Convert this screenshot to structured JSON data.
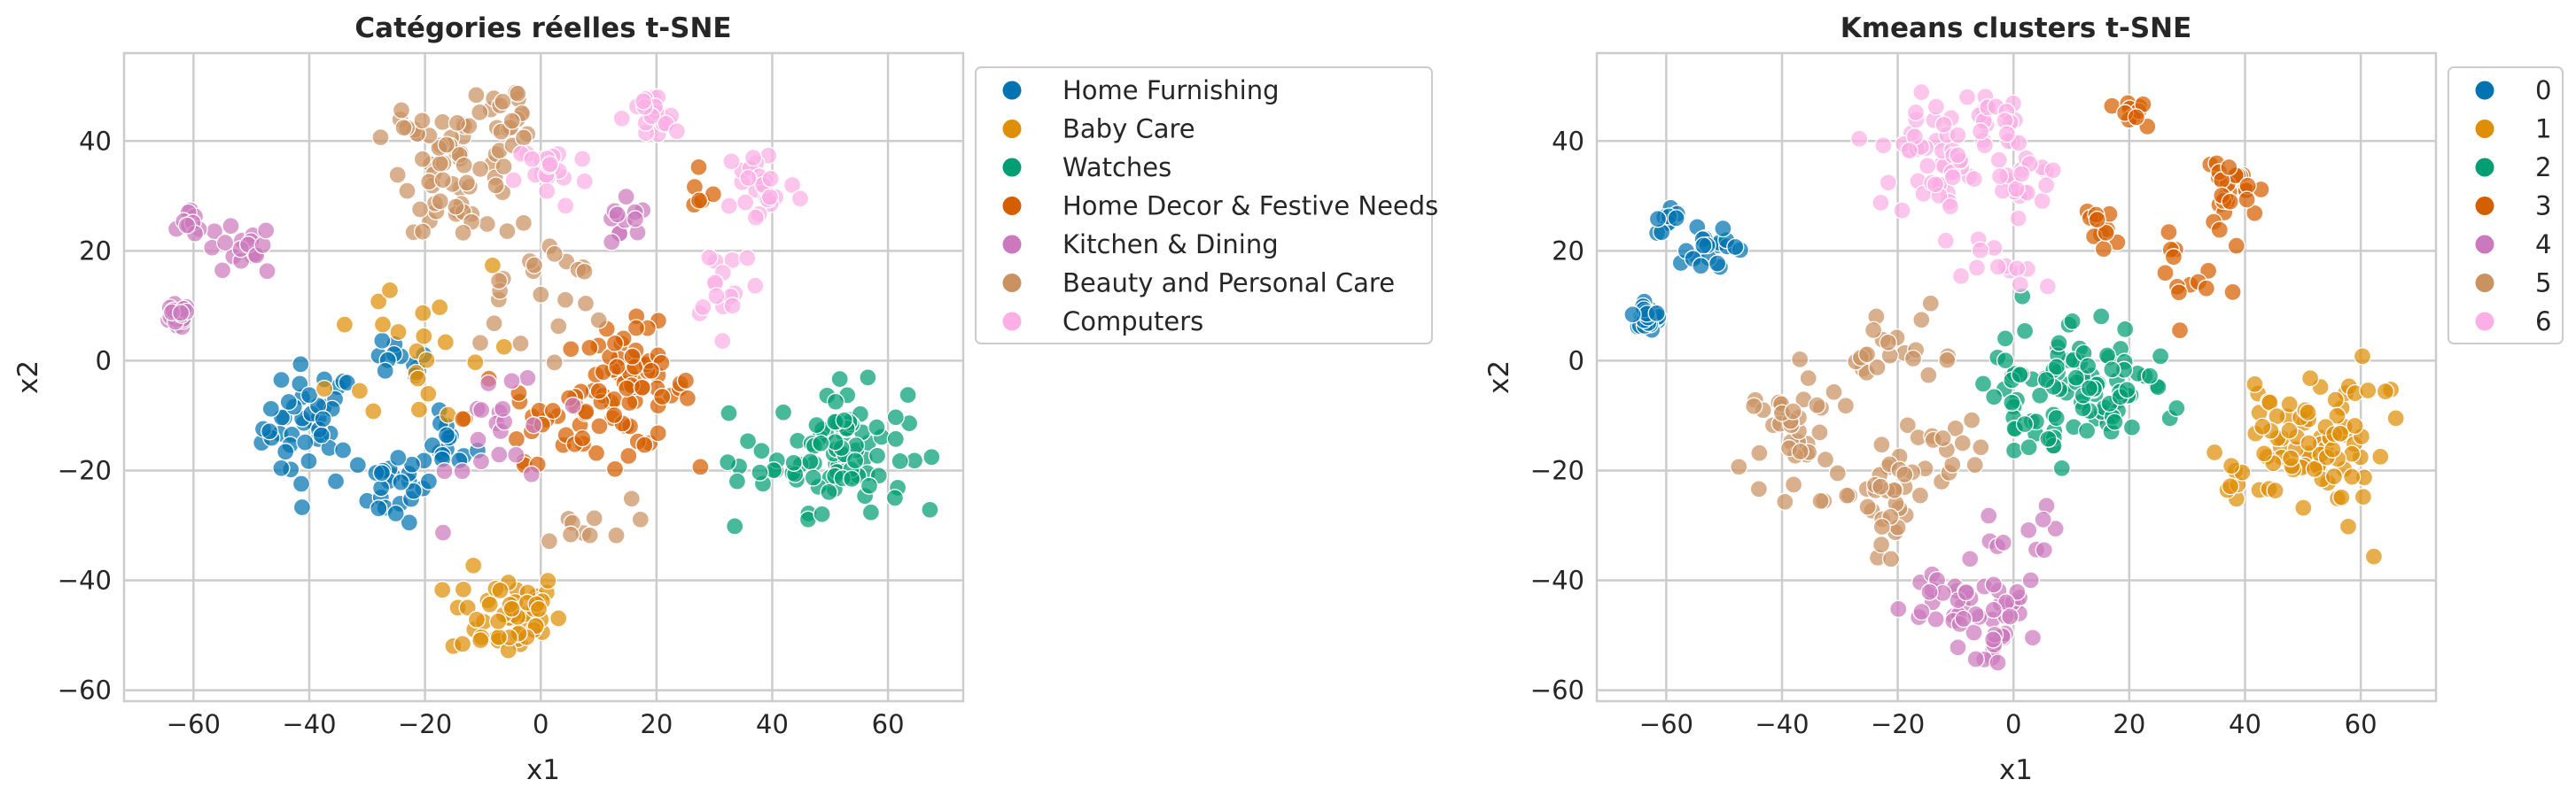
{
  "palette": [
    "#0173b2",
    "#de8f05",
    "#029e73",
    "#d55e00",
    "#cc78bc",
    "#ca9161",
    "#fbafe4"
  ],
  "chart_data": [
    {
      "type": "scatter",
      "title": "Catégories réelles t-SNE",
      "xlabel": "x1",
      "ylabel": "x2",
      "xlim": [
        -72,
        73
      ],
      "ylim": [
        -62,
        56
      ],
      "xticks": [
        -60,
        -40,
        -20,
        0,
        20,
        40,
        60
      ],
      "yticks": [
        -60,
        -40,
        -20,
        0,
        20,
        40
      ],
      "grid": true,
      "legend_position": "outside-right",
      "series": [
        {
          "name": "Home Furnishing",
          "color": "#0173b2",
          "clusters": [
            {
              "cx": -40,
              "cy": -12,
              "rx": 5,
              "ry": 7,
              "n": 45
            },
            {
              "cx": -25,
              "cy": -23,
              "rx": 4,
              "ry": 4,
              "n": 25
            },
            {
              "cx": -16,
              "cy": -15,
              "rx": 3,
              "ry": 3,
              "n": 14
            },
            {
              "cx": -25,
              "cy": -1,
              "rx": 4,
              "ry": 3,
              "n": 12
            }
          ]
        },
        {
          "name": "Baby Care",
          "color": "#de8f05",
          "clusters": [
            {
              "cx": -6,
              "cy": -46,
              "rx": 6,
              "ry": 5,
              "n": 55
            },
            {
              "cx": -20,
              "cy": 3,
              "rx": 10,
              "ry": 12,
              "n": 22
            }
          ]
        },
        {
          "name": "Watches",
          "color": "#029e73",
          "clusters": [
            {
              "cx": 52,
              "cy": -16,
              "rx": 7,
              "ry": 7,
              "n": 85
            },
            {
              "cx": 36,
              "cy": -22,
              "rx": 3,
              "ry": 3,
              "n": 8
            }
          ]
        },
        {
          "name": "Home Decor & Festive Needs",
          "color": "#d55e00",
          "clusters": [
            {
              "cx": 15,
              "cy": -5,
              "rx": 7,
              "ry": 7,
              "n": 75
            },
            {
              "cx": 0,
              "cy": -10,
              "rx": 8,
              "ry": 10,
              "n": 22
            },
            {
              "cx": 28,
              "cy": 30,
              "rx": 2,
              "ry": 2,
              "n": 6
            }
          ]
        },
        {
          "name": "Kitchen & Dining",
          "color": "#cc78bc",
          "clusters": [
            {
              "cx": -63,
              "cy": 8,
              "rx": 1.4,
              "ry": 1.4,
              "n": 28
            },
            {
              "cx": -52,
              "cy": 20,
              "rx": 4,
              "ry": 3,
              "n": 18
            },
            {
              "cx": -60,
              "cy": 25,
              "rx": 1.4,
              "ry": 1.4,
              "n": 10
            },
            {
              "cx": 14,
              "cy": 24,
              "rx": 3,
              "ry": 3,
              "n": 12
            },
            {
              "cx": -6,
              "cy": -13,
              "rx": 6,
              "ry": 9,
              "n": 20
            }
          ]
        },
        {
          "name": "Beauty and Personal Care",
          "color": "#ca9161",
          "clusters": [
            {
              "cx": -14,
              "cy": 35,
              "rx": 6,
              "ry": 7,
              "n": 55
            },
            {
              "cx": -5,
              "cy": 45,
              "rx": 3,
              "ry": 3,
              "n": 18
            },
            {
              "cx": -22,
              "cy": 42,
              "rx": 3,
              "ry": 2,
              "n": 10
            },
            {
              "cx": -2,
              "cy": 14,
              "rx": 9,
              "ry": 8,
              "n": 25
            },
            {
              "cx": 6,
              "cy": -30,
              "rx": 6,
              "ry": 3,
              "n": 10
            }
          ]
        },
        {
          "name": "Computers",
          "color": "#fbafe4",
          "clusters": [
            {
              "cx": 19,
              "cy": 44,
              "rx": 3,
              "ry": 3,
              "n": 22
            },
            {
              "cx": 2,
              "cy": 34,
              "rx": 4,
              "ry": 4,
              "n": 22
            },
            {
              "cx": 38,
              "cy": 32,
              "rx": 4,
              "ry": 5,
              "n": 26
            },
            {
              "cx": 32,
              "cy": 15,
              "rx": 4,
              "ry": 5,
              "n": 16
            }
          ]
        }
      ]
    },
    {
      "type": "scatter",
      "title": "Kmeans clusters t-SNE",
      "xlabel": "x1",
      "ylabel": "x2",
      "xlim": [
        -72,
        73
      ],
      "ylim": [
        -62,
        56
      ],
      "xticks": [
        -60,
        -40,
        -20,
        0,
        20,
        40,
        60
      ],
      "yticks": [
        -60,
        -40,
        -20,
        0,
        20,
        40
      ],
      "grid": true,
      "legend_position": "outside-right",
      "series": [
        {
          "name": "0",
          "color": "#0173b2",
          "clusters": [
            {
              "cx": -63,
              "cy": 8,
              "rx": 1.4,
              "ry": 1.4,
              "n": 28
            },
            {
              "cx": -52,
              "cy": 20,
              "rx": 4,
              "ry": 3,
              "n": 20
            },
            {
              "cx": -60,
              "cy": 25,
              "rx": 1.4,
              "ry": 1.4,
              "n": 10
            }
          ]
        },
        {
          "name": "1",
          "color": "#de8f05",
          "clusters": [
            {
              "cx": 52,
              "cy": -16,
              "rx": 7,
              "ry": 7,
              "n": 85
            },
            {
              "cx": 36,
              "cy": -22,
              "rx": 3,
              "ry": 3,
              "n": 8
            }
          ]
        },
        {
          "name": "2",
          "color": "#029e73",
          "clusters": [
            {
              "cx": 15,
              "cy": -5,
              "rx": 7,
              "ry": 7,
              "n": 75
            },
            {
              "cx": 2,
              "cy": -5,
              "rx": 6,
              "ry": 9,
              "n": 30
            }
          ]
        },
        {
          "name": "3",
          "color": "#d55e00",
          "clusters": [
            {
              "cx": 20,
              "cy": 45,
              "rx": 2,
              "ry": 2,
              "n": 14
            },
            {
              "cx": 38,
              "cy": 32,
              "rx": 4,
              "ry": 4,
              "n": 28
            },
            {
              "cx": 15,
              "cy": 25,
              "rx": 2,
              "ry": 3,
              "n": 12
            },
            {
              "cx": 32,
              "cy": 15,
              "rx": 4,
              "ry": 4,
              "n": 14
            }
          ]
        },
        {
          "name": "4",
          "color": "#cc78bc",
          "clusters": [
            {
              "cx": -6,
              "cy": -46,
              "rx": 6,
              "ry": 5,
              "n": 55
            },
            {
              "cx": 0,
              "cy": -30,
              "rx": 5,
              "ry": 3,
              "n": 10
            }
          ]
        },
        {
          "name": "5",
          "color": "#ca9161",
          "clusters": [
            {
              "cx": -38,
              "cy": -14,
              "rx": 6,
              "ry": 8,
              "n": 40
            },
            {
              "cx": -22,
              "cy": -24,
              "rx": 5,
              "ry": 6,
              "n": 35
            },
            {
              "cx": -20,
              "cy": 3,
              "rx": 6,
              "ry": 4,
              "n": 20
            },
            {
              "cx": -12,
              "cy": -15,
              "rx": 5,
              "ry": 4,
              "n": 12
            }
          ]
        },
        {
          "name": "6",
          "color": "#fbafe4",
          "clusters": [
            {
              "cx": -14,
              "cy": 35,
              "rx": 6,
              "ry": 7,
              "n": 55
            },
            {
              "cx": -3,
              "cy": 44,
              "rx": 3,
              "ry": 3,
              "n": 18
            },
            {
              "cx": 2,
              "cy": 33,
              "rx": 4,
              "ry": 4,
              "n": 20
            },
            {
              "cx": -2,
              "cy": 16,
              "rx": 5,
              "ry": 3,
              "n": 12
            }
          ]
        }
      ]
    }
  ]
}
